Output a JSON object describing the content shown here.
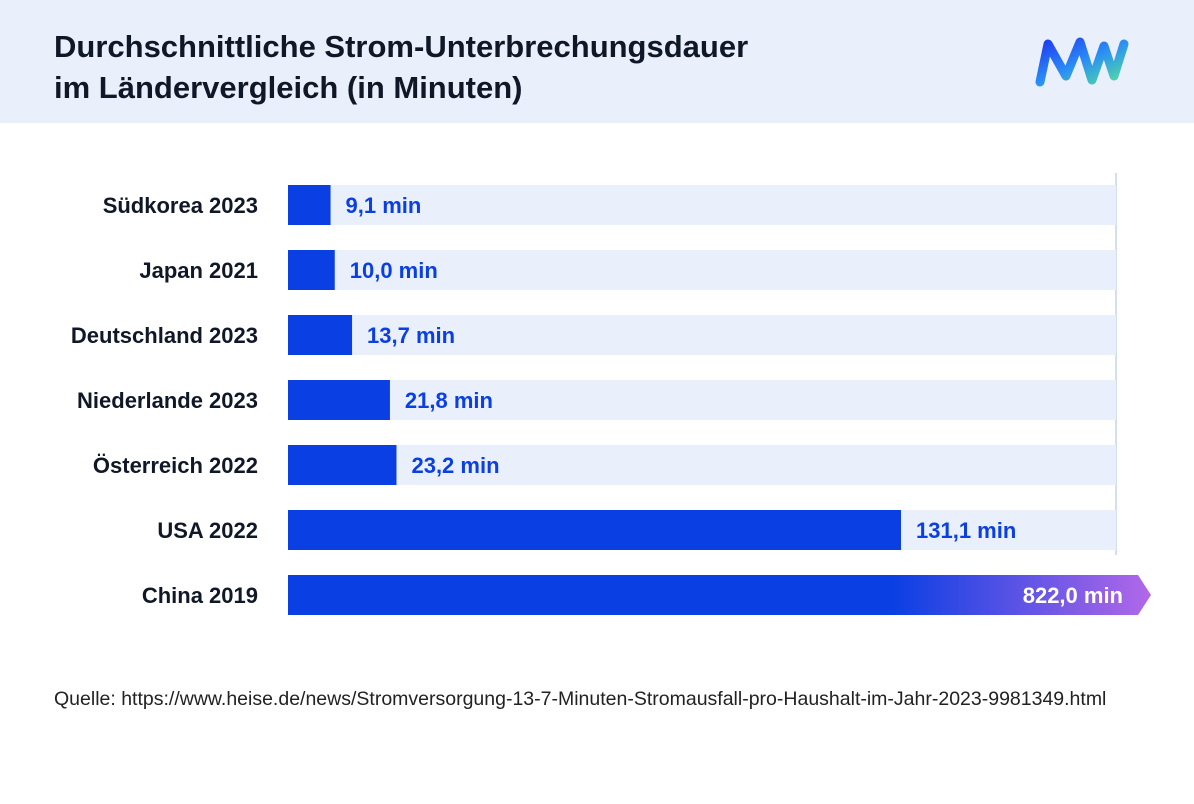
{
  "header": {
    "title_line1": "Durchschnittliche Strom-Unterbrechungsdauer",
    "title_line2": "im Ländervergleich (in Minuten)",
    "logo_icon": "mw-logo-icon"
  },
  "chart_data": {
    "type": "bar",
    "orientation": "horizontal",
    "categories": [
      "Südkorea 2023",
      "Japan 2021",
      "Deutschland 2023",
      "Niederlande 2023",
      "Österreich 2022",
      "USA 2022",
      "China 2019"
    ],
    "values": [
      9.1,
      10.0,
      13.7,
      21.8,
      23.2,
      131.1,
      822.0
    ],
    "value_labels": [
      "9,1 min",
      "10,0 min",
      "13,7 min",
      "21,8 min",
      "23,2 min",
      "131,1 min",
      "822,0 min"
    ],
    "axis_break_last_bar": true,
    "grid": false,
    "legend": "none",
    "colors": {
      "bar": "#0a3fe3",
      "track": "#e9effb",
      "label": "#0a3fe3",
      "gradient_end": "#b268e8",
      "category_text": "#101828"
    }
  },
  "source": {
    "text": "Quelle: https://www.heise.de/news/Stromversorgung-13-7-Minuten-Stromausfall-pro-Haushalt-im-Jahr-2023-9981349.html"
  }
}
